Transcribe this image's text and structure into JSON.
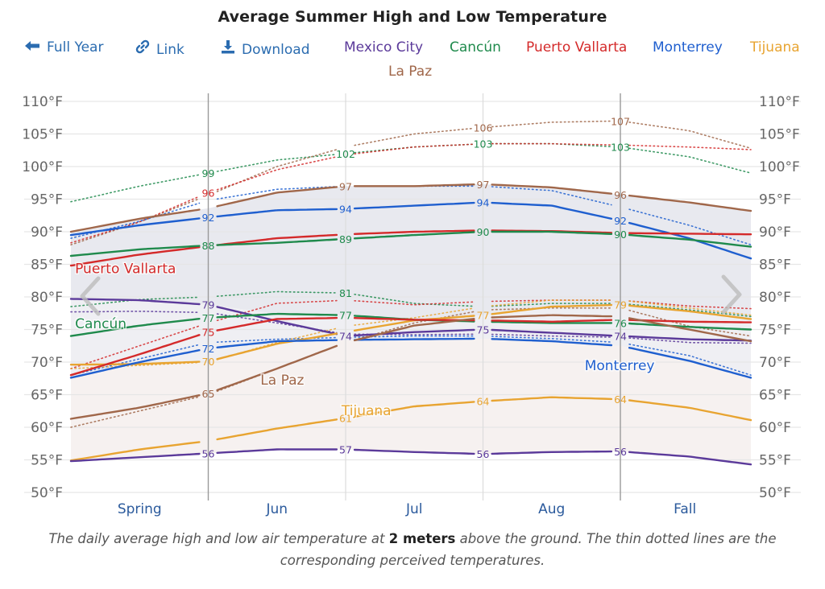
{
  "title": "Average Summer High and Low Temperature",
  "toolbar": {
    "full_year": {
      "label": "Full Year",
      "icon": "arrow-left-icon"
    },
    "link": {
      "label": "Link",
      "icon": "link-icon"
    },
    "download": {
      "label": "Download",
      "icon": "download-icon"
    }
  },
  "legend": [
    {
      "label": "Mexico City",
      "color": "#5b3a9a"
    },
    {
      "label": "Cancún",
      "color": "#1f8a4c"
    },
    {
      "label": "Puerto Vallarta",
      "color": "#d42a2a"
    },
    {
      "label": "Monterrey",
      "color": "#1f5fcf"
    },
    {
      "label": "Tijuana",
      "color": "#e8a431"
    },
    {
      "label": "La Paz",
      "color": "#a0674a"
    }
  ],
  "nav": {
    "prev": "chevron-left-icon",
    "next": "chevron-right-icon"
  },
  "caption": {
    "before": "The daily average high and low air temperature at ",
    "bold": "2 meters",
    "after": " above the ground. The thin dotted lines are the corresponding perceived temperatures."
  },
  "chart_data": {
    "type": "line",
    "title": "Average Summer High and Low Temperature",
    "xlabel": "",
    "ylabel": "",
    "categories": [
      "Spring",
      "Jun",
      "Jul",
      "Aug",
      "Fall"
    ],
    "x_unit": "months from start of May (Jun 1 = 1, Jul 1 = 2, Aug 1 = 3, Sep 1 = 4)",
    "x": [
      0,
      0.5,
      1,
      1.5,
      2,
      2.5,
      3,
      3.5,
      4,
      4.5,
      4.95
    ],
    "xlim": [
      0,
      4.95
    ],
    "boundaries": [
      1,
      2,
      3,
      4
    ],
    "ylim": [
      50,
      110
    ],
    "yticks": [
      "50°F",
      "55°F",
      "60°F",
      "65°F",
      "70°F",
      "75°F",
      "80°F",
      "85°F",
      "90°F",
      "95°F",
      "100°F",
      "105°F",
      "110°F"
    ],
    "ytick_values": [
      50,
      55,
      60,
      65,
      70,
      75,
      80,
      85,
      90,
      95,
      100,
      105,
      110
    ],
    "grid": true,
    "legend": "top",
    "series": [
      {
        "name": "La Paz high",
        "city": "La Paz",
        "kind": "high",
        "values": [
          90,
          92,
          93.6,
          96,
          97,
          97,
          97.3,
          96.8,
          95.7,
          94.5,
          93.2
        ]
      },
      {
        "name": "Monterrey high",
        "city": "Monterrey",
        "kind": "high",
        "values": [
          89.5,
          91,
          92.2,
          93.3,
          93.5,
          94,
          94.5,
          94,
          91.7,
          89,
          85.9
        ]
      },
      {
        "name": "Puerto Vallarta high",
        "city": "Puerto Vallarta",
        "kind": "high",
        "values": [
          84.8,
          86.5,
          87.8,
          89,
          89.6,
          90,
          90.2,
          90.1,
          89.8,
          89.7,
          89.6
        ]
      },
      {
        "name": "Cancún high",
        "city": "Cancún",
        "kind": "high",
        "values": [
          86.3,
          87.3,
          87.9,
          88.3,
          88.9,
          89.5,
          90,
          90,
          89.6,
          88.8,
          87.7
        ]
      },
      {
        "name": "Mexico City high",
        "city": "Mexico City",
        "kind": "high",
        "values": [
          79.7,
          79.5,
          78.8,
          76.3,
          74,
          74.6,
          75,
          74.5,
          74,
          73.5,
          73.3
        ]
      },
      {
        "name": "Tijuana high",
        "city": "Tijuana",
        "kind": "high",
        "values": [
          69.6,
          69.7,
          70.1,
          72.8,
          74.6,
          76.4,
          77.2,
          78.5,
          78.8,
          77.8,
          76.6
        ]
      },
      {
        "name": "Cancún low",
        "city": "Cancún",
        "kind": "low",
        "values": [
          74,
          75.6,
          76.8,
          77.4,
          77.2,
          76.5,
          76.2,
          76,
          76,
          75.4,
          75
        ]
      },
      {
        "name": "Puerto Vallarta low",
        "city": "Puerto Vallarta",
        "kind": "low",
        "values": [
          68,
          71.2,
          74.6,
          76.6,
          76.8,
          76.5,
          76.4,
          76.2,
          76.5,
          76.2,
          76.1
        ]
      },
      {
        "name": "Monterrey low",
        "city": "Monterrey",
        "kind": "low",
        "values": [
          67.6,
          70,
          72.1,
          73.2,
          73.4,
          73.5,
          73.6,
          73.2,
          72.5,
          70.2,
          67.6
        ]
      },
      {
        "name": "La Paz low",
        "city": "La Paz",
        "kind": "low",
        "values": [
          61.3,
          63,
          65.2,
          69,
          73,
          75.6,
          76.8,
          77.2,
          77,
          75,
          73.2
        ]
      },
      {
        "name": "Tijuana low",
        "city": "Tijuana",
        "kind": "low",
        "values": [
          54.9,
          56.6,
          57.9,
          59.8,
          61.4,
          63.2,
          64,
          64.6,
          64.3,
          63,
          61.1
        ]
      },
      {
        "name": "Mexico City low",
        "city": "Mexico City",
        "kind": "low",
        "values": [
          54.8,
          55.4,
          56,
          56.6,
          56.6,
          56.2,
          55.9,
          56.2,
          56.3,
          55.5,
          54.3
        ]
      },
      {
        "name": "Cancún perceived high",
        "city": "Cancún",
        "kind": "perceived",
        "values": [
          94.6,
          97,
          99,
          101,
          102,
          103,
          103.5,
          103.5,
          103,
          101.5,
          99
        ]
      },
      {
        "name": "La Paz perceived high",
        "city": "La Paz",
        "kind": "perceived",
        "values": [
          88,
          91.5,
          95.6,
          100,
          103,
          105,
          106,
          106.8,
          107,
          105.5,
          102.8
        ]
      },
      {
        "name": "Puerto Vallarta perceived high",
        "city": "Puerto Vallarta",
        "kind": "perceived",
        "values": [
          88.3,
          91.5,
          96,
          99.5,
          101.8,
          103,
          103.5,
          103.5,
          103.3,
          103,
          102.6
        ]
      },
      {
        "name": "Monterrey perceived high",
        "city": "Monterrey",
        "kind": "perceived",
        "values": [
          89,
          91.6,
          94.8,
          96.5,
          97,
          97,
          97,
          96.3,
          93.8,
          91,
          88
        ]
      },
      {
        "name": "Cancún perceived low",
        "city": "Cancún",
        "kind": "perceived",
        "values": [
          78.5,
          79.6,
          80,
          80.8,
          80.6,
          79,
          78.5,
          79,
          79,
          78,
          77
        ]
      },
      {
        "name": "Puerto Vallarta perceived low",
        "city": "Puerto Vallarta",
        "kind": "perceived",
        "values": [
          69,
          72.5,
          76,
          79,
          79.5,
          78.8,
          79.3,
          79.5,
          79.5,
          78.6,
          78.2
        ]
      },
      {
        "name": "Mexico City perceived high",
        "city": "Mexico City",
        "kind": "perceived",
        "values": [
          77.7,
          77.8,
          77.6,
          76,
          74.3,
          74.2,
          74.3,
          74,
          73.8,
          73,
          72.9
        ]
      },
      {
        "name": "Monterrey perceived low",
        "city": "Monterrey",
        "kind": "perceived",
        "values": [
          68,
          70.5,
          73,
          73.5,
          73.8,
          74,
          74,
          73.6,
          73,
          71,
          68
        ]
      },
      {
        "name": "Tijuana perceived high",
        "city": "Tijuana",
        "kind": "perceived",
        "values": [
          69,
          69.5,
          70,
          73,
          75.5,
          76.8,
          78.5,
          79.5,
          79.5,
          78.3,
          77.2
        ]
      },
      {
        "name": "La Paz perceived low",
        "city": "La Paz",
        "kind": "perceived",
        "values": [
          60,
          62.5,
          65,
          69,
          73,
          76,
          78,
          78.3,
          78.3,
          75.5,
          74
        ]
      }
    ],
    "point_labels": [
      {
        "x": 1,
        "value": "99",
        "city": "Cancún",
        "y": 99
      },
      {
        "x": 1,
        "value": "96",
        "city": "Puerto Vallarta",
        "y": 96
      },
      {
        "x": 1,
        "value": "92",
        "city": "Monterrey",
        "y": 92.2
      },
      {
        "x": 1,
        "value": "88",
        "city": "Cancún",
        "y": 87.9
      },
      {
        "x": 1,
        "value": "79",
        "city": "Mexico City",
        "y": 78.8
      },
      {
        "x": 1,
        "value": "77",
        "city": "Cancún",
        "y": 76.8
      },
      {
        "x": 1,
        "value": "75",
        "city": "Puerto Vallarta",
        "y": 74.6
      },
      {
        "x": 1,
        "value": "72",
        "city": "Monterrey",
        "y": 72.1
      },
      {
        "x": 1,
        "value": "70",
        "city": "Tijuana",
        "y": 70.1
      },
      {
        "x": 1,
        "value": "65",
        "city": "La Paz",
        "y": 65.2
      },
      {
        "x": 1,
        "value": "56",
        "city": "Mexico City",
        "y": 56
      },
      {
        "x": 2,
        "value": "102",
        "city": "Cancún",
        "y": 102
      },
      {
        "x": 2,
        "value": "97",
        "city": "La Paz",
        "y": 97
      },
      {
        "x": 2,
        "value": "94",
        "city": "Monterrey",
        "y": 93.5
      },
      {
        "x": 2,
        "value": "89",
        "city": "Cancún",
        "y": 88.9
      },
      {
        "x": 2,
        "value": "81",
        "city": "Cancún",
        "y": 80.6
      },
      {
        "x": 2,
        "value": "77",
        "city": "Cancún",
        "y": 77.2
      },
      {
        "x": 2,
        "value": "74",
        "city": "Mexico City",
        "y": 74
      },
      {
        "x": 2,
        "value": "61",
        "city": "Tijuana",
        "y": 61.4
      },
      {
        "x": 2,
        "value": "57",
        "city": "Mexico City",
        "y": 56.6
      },
      {
        "x": 3,
        "value": "106",
        "city": "La Paz",
        "y": 106
      },
      {
        "x": 3,
        "value": "103",
        "city": "Cancún",
        "y": 103.5
      },
      {
        "x": 3,
        "value": "97",
        "city": "La Paz",
        "y": 97.3
      },
      {
        "x": 3,
        "value": "94",
        "city": "Monterrey",
        "y": 94.5
      },
      {
        "x": 3,
        "value": "90",
        "city": "Cancún",
        "y": 90
      },
      {
        "x": 3,
        "value": "77",
        "city": "Tijuana",
        "y": 77.2
      },
      {
        "x": 3,
        "value": "75",
        "city": "Mexico City",
        "y": 75
      },
      {
        "x": 3,
        "value": "64",
        "city": "Tijuana",
        "y": 64
      },
      {
        "x": 3,
        "value": "56",
        "city": "Mexico City",
        "y": 55.9
      },
      {
        "x": 4,
        "value": "107",
        "city": "La Paz",
        "y": 107
      },
      {
        "x": 4,
        "value": "103",
        "city": "Cancún",
        "y": 103
      },
      {
        "x": 4,
        "value": "96",
        "city": "La Paz",
        "y": 95.7
      },
      {
        "x": 4,
        "value": "92",
        "city": "Monterrey",
        "y": 91.7
      },
      {
        "x": 4,
        "value": "90",
        "city": "Cancún",
        "y": 89.6
      },
      {
        "x": 4,
        "value": "79",
        "city": "Tijuana",
        "y": 78.8
      },
      {
        "x": 4,
        "value": "76",
        "city": "Cancún",
        "y": 76
      },
      {
        "x": 4,
        "value": "74",
        "city": "Mexico City",
        "y": 74
      },
      {
        "x": 4,
        "value": "64",
        "city": "Tijuana",
        "y": 64.3
      },
      {
        "x": 4,
        "value": "56",
        "city": "Mexico City",
        "y": 56.3
      }
    ],
    "series_labels": [
      {
        "text": "Puerto Vallarta",
        "city": "Puerto Vallarta",
        "x": 0.03,
        "y": 84.4
      },
      {
        "text": "Cancún",
        "city": "Cancún",
        "x": 0.03,
        "y": 75.9
      },
      {
        "text": "La Paz",
        "city": "La Paz",
        "x": 1.38,
        "y": 67.3
      },
      {
        "text": "Tijuana",
        "city": "Tijuana",
        "x": 1.97,
        "y": 62.6
      },
      {
        "text": "Monterrey",
        "city": "Monterrey",
        "x": 3.74,
        "y": 69.5
      }
    ]
  }
}
